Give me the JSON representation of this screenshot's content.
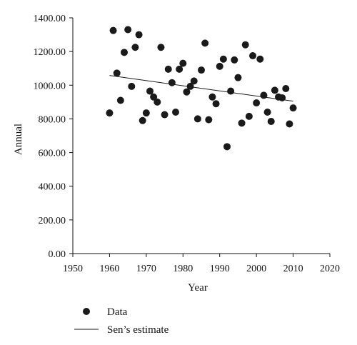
{
  "chart_data": {
    "type": "scatter",
    "xlabel": "Year",
    "ylabel": "Annual",
    "xlim": [
      1950,
      2020
    ],
    "ylim": [
      0,
      1400
    ],
    "x_ticks": [
      "1950",
      "1960",
      "1970",
      "1980",
      "1990",
      "2000",
      "2010",
      "2020"
    ],
    "y_ticks": [
      "0.00",
      "200.00",
      "400.00",
      "600.00",
      "800.00",
      "1000.00",
      "1200.00",
      "1400.00"
    ],
    "grid": false,
    "legend_position": "bottom-left",
    "series": [
      {
        "name": "Data",
        "type": "scatter",
        "color": "#1a1a1a",
        "points": [
          [
            1960,
            835
          ],
          [
            1961,
            1325
          ],
          [
            1962,
            1072
          ],
          [
            1963,
            910
          ],
          [
            1964,
            1195
          ],
          [
            1965,
            1330
          ],
          [
            1966,
            993
          ],
          [
            1967,
            1225
          ],
          [
            1968,
            1300
          ],
          [
            1969,
            790
          ],
          [
            1970,
            835
          ],
          [
            1971,
            965
          ],
          [
            1972,
            930
          ],
          [
            1973,
            900
          ],
          [
            1974,
            1225
          ],
          [
            1975,
            825
          ],
          [
            1976,
            1095
          ],
          [
            1977,
            1015
          ],
          [
            1978,
            840
          ],
          [
            1979,
            1095
          ],
          [
            1980,
            1130
          ],
          [
            1981,
            960
          ],
          [
            1982,
            993
          ],
          [
            1983,
            1025
          ],
          [
            1984,
            800
          ],
          [
            1985,
            1090
          ],
          [
            1986,
            1250
          ],
          [
            1987,
            795
          ],
          [
            1988,
            930
          ],
          [
            1989,
            890
          ],
          [
            1990,
            1112
          ],
          [
            1991,
            1155
          ],
          [
            1992,
            635
          ],
          [
            1993,
            965
          ],
          [
            1994,
            1150
          ],
          [
            1995,
            1045
          ],
          [
            1996,
            775
          ],
          [
            1997,
            1240
          ],
          [
            1998,
            815
          ],
          [
            1999,
            1175
          ],
          [
            2000,
            895
          ],
          [
            2001,
            1155
          ],
          [
            2002,
            940
          ],
          [
            2003,
            840
          ],
          [
            2004,
            785
          ],
          [
            2005,
            970
          ],
          [
            2006,
            930
          ],
          [
            2007,
            925
          ],
          [
            2008,
            980
          ],
          [
            2009,
            770
          ],
          [
            2010,
            865
          ]
        ]
      },
      {
        "name": "Sen’s estimate",
        "type": "line",
        "color": "#1a1a1a",
        "points": [
          [
            1960,
            1058
          ],
          [
            2010,
            905
          ]
        ]
      }
    ]
  }
}
